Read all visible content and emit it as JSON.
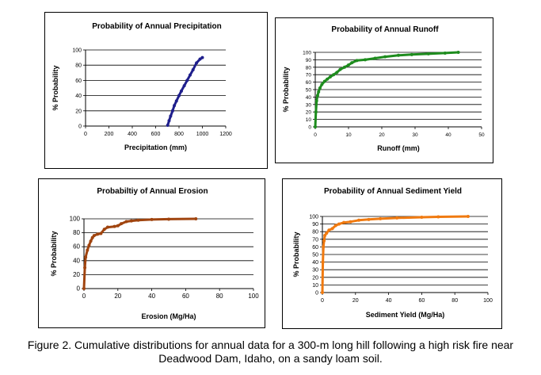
{
  "caption": {
    "line1": "Figure 2.  Cumulative distributions for annual data for a 300-m long hill following a high risk fire near",
    "line2": "Deadwood Dam, Idaho, on a sandy loam soil."
  },
  "chart_data": [
    {
      "type": "line",
      "title": "Probability of Annual Precipitation",
      "xlabel": "Precipitation (mm)",
      "ylabel": "% Probability",
      "xlim": [
        0,
        1200
      ],
      "ylim": [
        0,
        100
      ],
      "xticks": [
        "0",
        "200",
        "400",
        "600",
        "800",
        "1000",
        "1200"
      ],
      "yticks": [
        "0",
        "20",
        "40",
        "60",
        "80",
        "100"
      ],
      "grid": "horizontal",
      "series": [
        {
          "color": "#1f1f8c",
          "x": [
            703,
            715,
            728,
            745,
            760,
            778,
            800,
            820,
            845,
            870,
            895,
            920,
            950,
            980,
            1000
          ],
          "y": [
            1,
            7,
            13,
            20,
            27,
            33,
            40,
            46,
            53,
            60,
            67,
            74,
            83,
            88,
            90
          ]
        }
      ]
    },
    {
      "type": "line",
      "title": "Probability of Annual Runoff",
      "xlabel": "Runoff (mm)",
      "ylabel": "% Probability",
      "xlim": [
        0,
        50
      ],
      "ylim": [
        0,
        100
      ],
      "xticks": [
        "0",
        "10",
        "20",
        "30",
        "40",
        "50"
      ],
      "yticks": [
        "0",
        "10",
        "20",
        "30",
        "40",
        "50",
        "60",
        "70",
        "80",
        "90",
        "100"
      ],
      "grid": "horizontal",
      "series": [
        {
          "color": "#1e8c1e",
          "x": [
            0,
            0.2,
            0.4,
            0.7,
            1.0,
            1.4,
            2.0,
            2.8,
            3.6,
            4.5,
            5.5,
            6.5,
            7.5,
            8.8,
            10.0,
            11.0,
            12.5,
            15.0,
            18.0,
            21.0,
            25.0,
            29.0,
            34.0,
            39.0,
            43.0
          ],
          "y": [
            0,
            20,
            35,
            42,
            47,
            52,
            57,
            61,
            64,
            67,
            70,
            73,
            77,
            80,
            83,
            86,
            89,
            90,
            92,
            94,
            96,
            97,
            98,
            99,
            100
          ]
        }
      ]
    },
    {
      "type": "line",
      "title": "Probabiltiy of Annual Erosion",
      "xlabel": "Erosion (Mg/Ha)",
      "ylabel": "% Probability",
      "xlim": [
        0,
        100
      ],
      "ylim": [
        0,
        100
      ],
      "xticks": [
        "0",
        "20",
        "40",
        "60",
        "80",
        "100"
      ],
      "yticks": [
        "0",
        "20",
        "40",
        "60",
        "80",
        "100"
      ],
      "grid": "horizontal",
      "series": [
        {
          "color": "#a0440f",
          "x": [
            0,
            0.5,
            1,
            2,
            3,
            4,
            5,
            6,
            8,
            10,
            12,
            14,
            18,
            20,
            22,
            25,
            28,
            32,
            40,
            50,
            66
          ],
          "y": [
            0,
            30,
            45,
            55,
            62,
            68,
            73,
            76,
            78,
            79,
            85,
            88,
            89,
            90,
            93,
            96,
            97,
            98,
            99,
            99.5,
            100
          ]
        }
      ]
    },
    {
      "type": "line",
      "title": "Probability of Annual Sediment Yield",
      "xlabel": "Sediment Yield (Mg/Ha)",
      "ylabel": "% Probability",
      "xlim": [
        0,
        100
      ],
      "ylim": [
        0,
        100
      ],
      "xticks": [
        "0",
        "20",
        "40",
        "60",
        "80",
        "100"
      ],
      "yticks": [
        "0",
        "10",
        "20",
        "30",
        "40",
        "50",
        "60",
        "70",
        "80",
        "90",
        "100"
      ],
      "grid": "horizontal",
      "series": [
        {
          "color": "#f07a10",
          "x": [
            0,
            0.3,
            0.6,
            1,
            1.5,
            2.5,
            4,
            6,
            8,
            10,
            13,
            17,
            22,
            28,
            35,
            45,
            60,
            70,
            88
          ],
          "y": [
            0,
            40,
            60,
            68,
            75,
            78,
            82,
            84,
            88,
            90,
            92,
            93,
            95,
            96,
            97,
            98,
            99,
            99.5,
            100
          ]
        }
      ]
    }
  ]
}
